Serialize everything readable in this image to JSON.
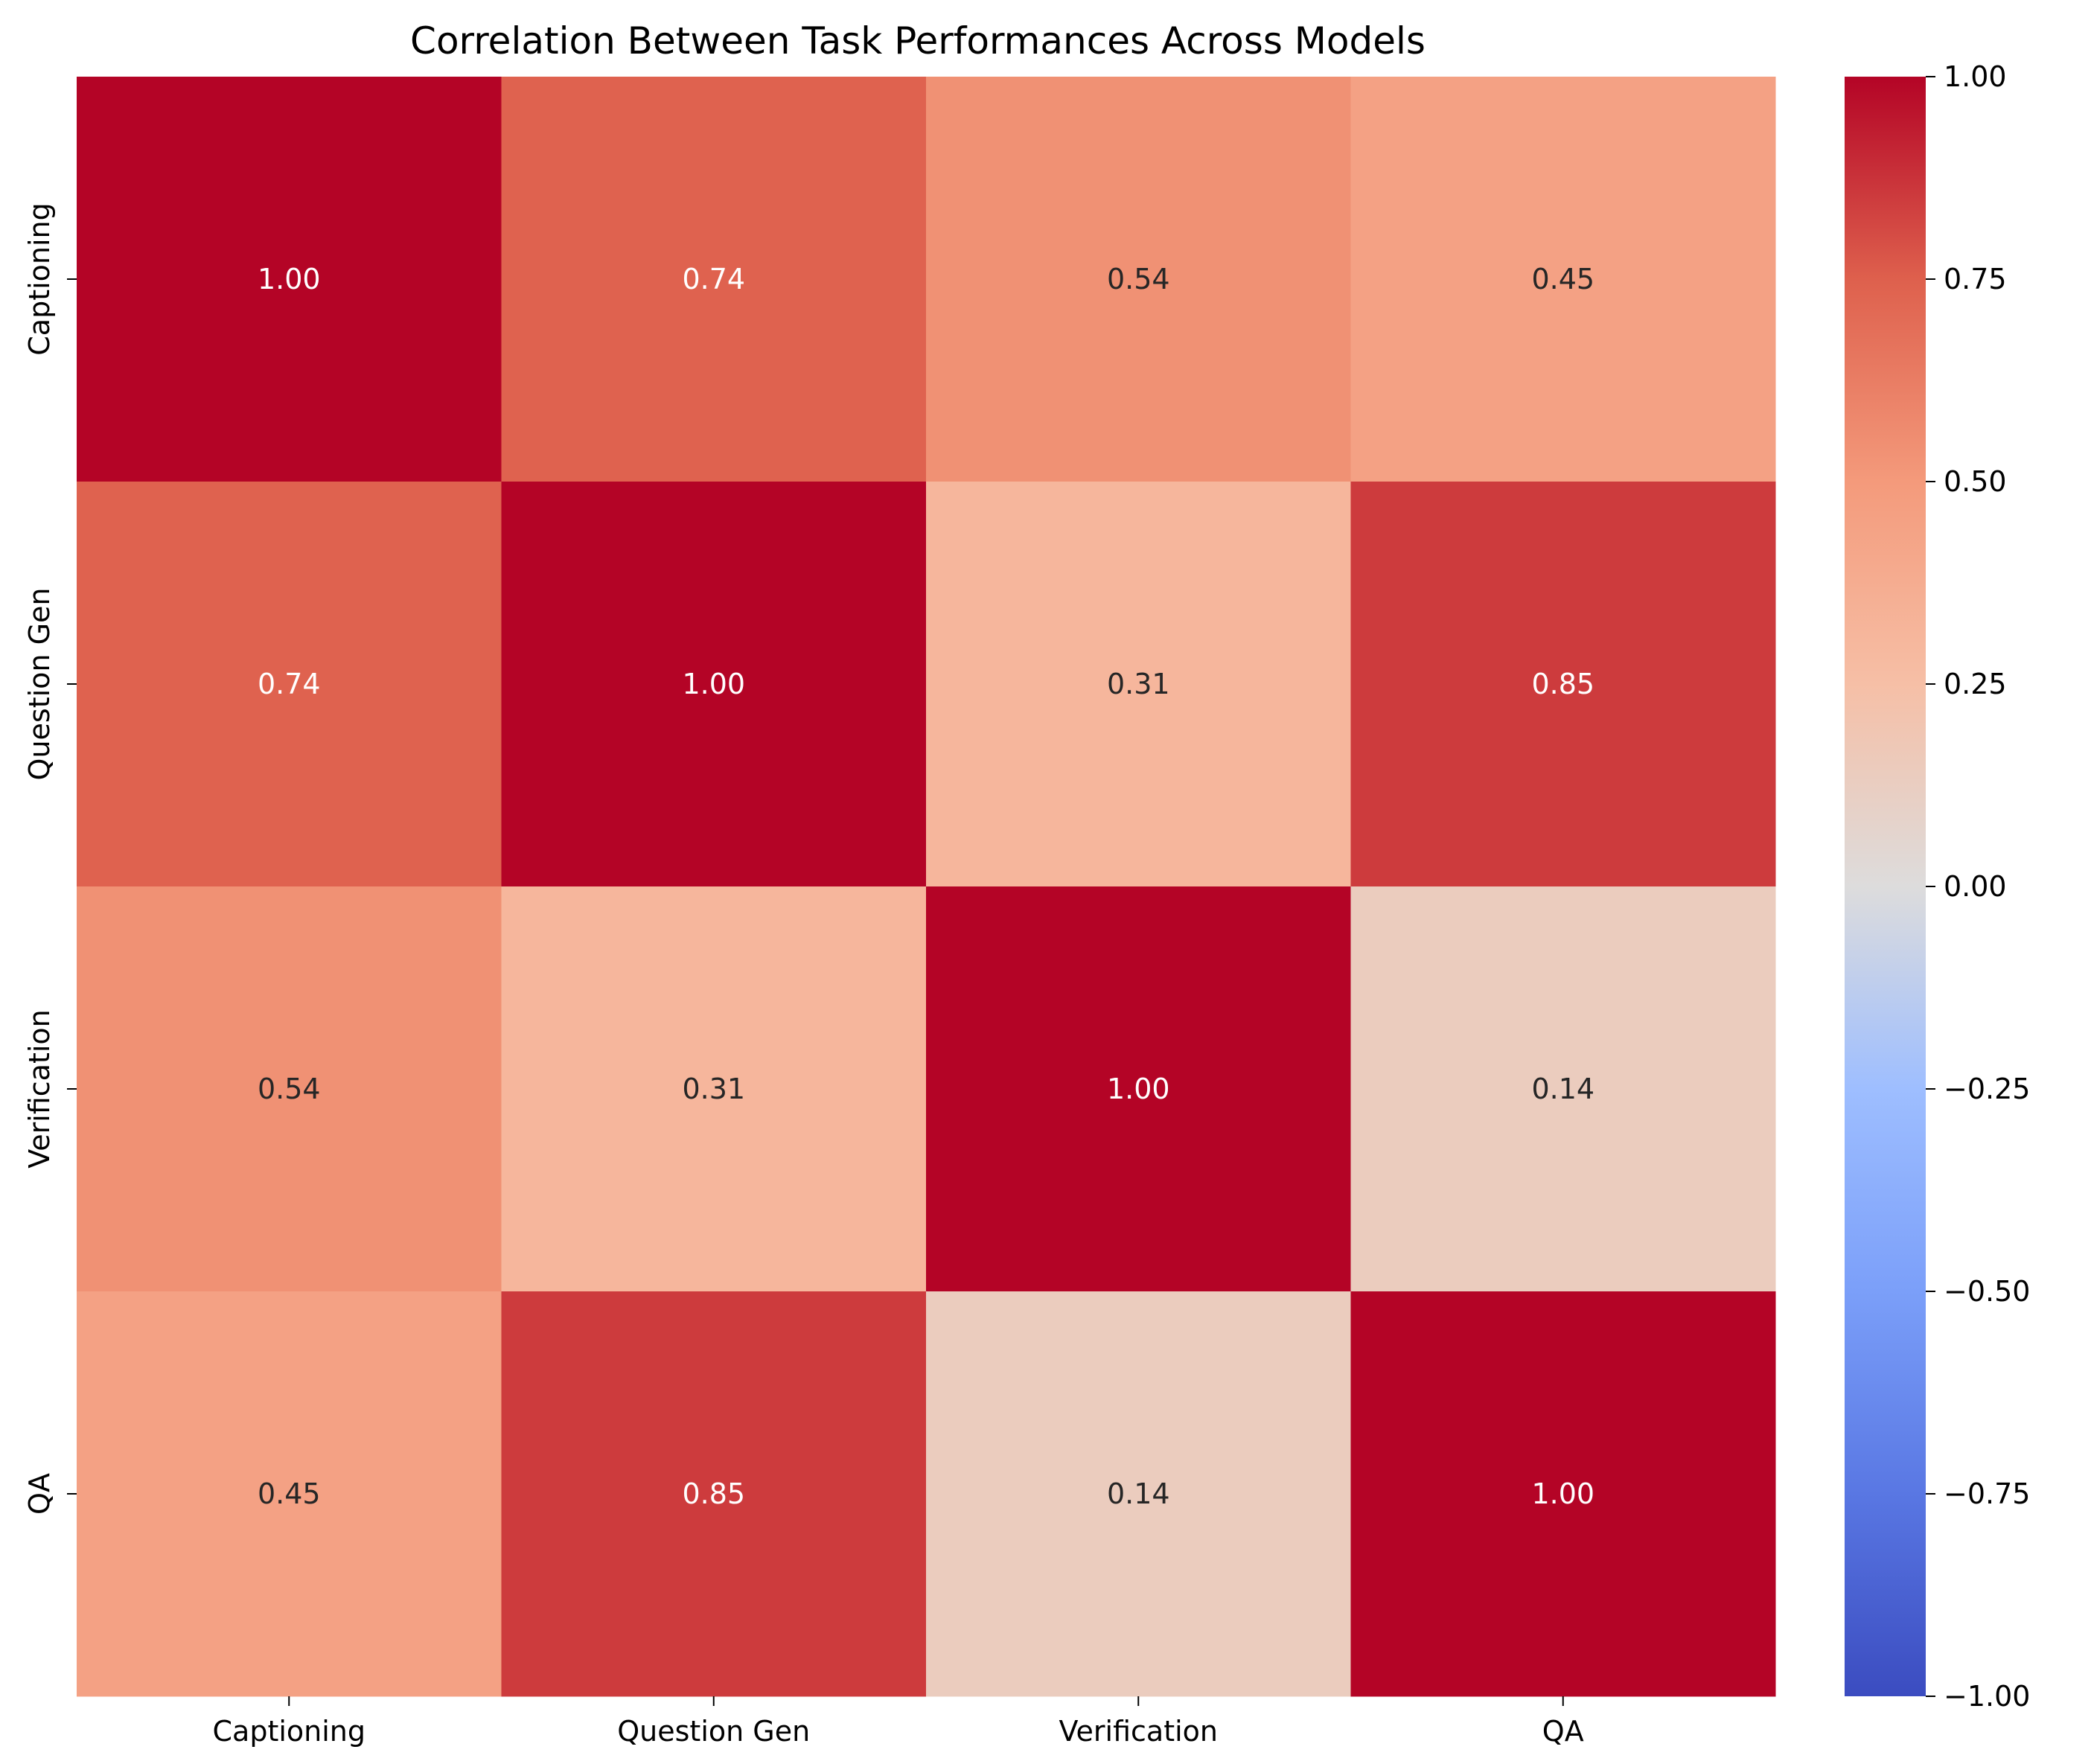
{
  "chart_data": {
    "type": "heatmap",
    "title": "Correlation Between Task Performances Across Models",
    "rows": [
      "Captioning",
      "Question Gen",
      "Verification",
      "QA"
    ],
    "columns": [
      "Captioning",
      "Question Gen",
      "Verification",
      "QA"
    ],
    "values": [
      [
        1.0,
        0.74,
        0.54,
        0.45
      ],
      [
        0.74,
        1.0,
        0.31,
        0.85
      ],
      [
        0.54,
        0.31,
        1.0,
        0.14
      ],
      [
        0.45,
        0.85,
        0.14,
        1.0
      ]
    ],
    "value_format": "0.00",
    "colormap": "coolwarm",
    "vmin": -1.0,
    "vmax": 1.0,
    "colorbar": {
      "position": "right",
      "ticks": [
        1.0,
        0.75,
        0.5,
        0.25,
        0.0,
        -0.25,
        -0.5,
        -0.75,
        -1.0
      ],
      "tick_labels": [
        "1.00",
        "0.75",
        "0.50",
        "0.25",
        "0.00",
        "−0.25",
        "−0.50",
        "−0.75",
        "−1.00"
      ]
    }
  }
}
